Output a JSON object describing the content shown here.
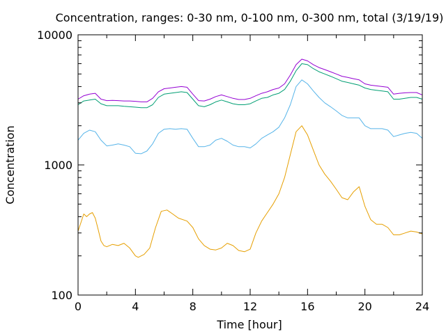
{
  "chart_data": {
    "type": "line",
    "title": "Concentration, ranges: 0-30 nm, 0-100 nm, 0-300 nm, total (3/19/19)",
    "xlabel": "Time [hour]",
    "ylabel": "Concentration",
    "xlim": [
      0,
      24
    ],
    "ylim": [
      100,
      10000
    ],
    "yscale": "log",
    "grid": false,
    "legend": "none",
    "x_ticks": [
      0,
      4,
      8,
      12,
      16,
      20,
      24
    ],
    "x_tick_labels": [
      "0",
      "4",
      "8",
      "12",
      "16",
      "20",
      "24"
    ],
    "y_ticks": [
      100,
      1000,
      10000
    ],
    "y_tick_labels": [
      "100",
      "1000",
      "10000"
    ],
    "series": [
      {
        "color": "#e69f00",
        "x": [
          0,
          0.2,
          0.4,
          0.6,
          0.8,
          1.0,
          1.2,
          1.4,
          1.6,
          1.8,
          2.0,
          2.4,
          2.8,
          3.2,
          3.6,
          4.0,
          4.2,
          4.6,
          5.0,
          5.4,
          5.8,
          6.2,
          6.6,
          7.0,
          7.6,
          8.0,
          8.4,
          8.8,
          9.2,
          9.6,
          10.0,
          10.4,
          10.8,
          11.2,
          11.6,
          12.0,
          12.4,
          12.8,
          13.2,
          13.6,
          14.0,
          14.4,
          14.8,
          15.2,
          15.6,
          16.0,
          16.4,
          16.8,
          17.2,
          17.6,
          18.0,
          18.4,
          18.8,
          19.2,
          19.6,
          20.0,
          20.4,
          20.8,
          21.2,
          21.6,
          22.0,
          22.4,
          22.8,
          23.2,
          23.6,
          24.0
        ],
        "values": [
          310,
          360,
          420,
          400,
          420,
          430,
          390,
          320,
          260,
          240,
          235,
          245,
          240,
          250,
          230,
          200,
          195,
          205,
          230,
          330,
          440,
          450,
          420,
          390,
          370,
          330,
          270,
          240,
          225,
          222,
          230,
          250,
          240,
          220,
          215,
          225,
          300,
          370,
          430,
          500,
          600,
          800,
          1200,
          1800,
          2000,
          1700,
          1300,
          1000,
          850,
          750,
          650,
          560,
          540,
          620,
          680,
          480,
          380,
          350,
          350,
          330,
          290,
          290,
          300,
          310,
          305,
          295
        ]
      },
      {
        "color": "#56b4e9",
        "x": [
          0,
          0.4,
          0.8,
          1.2,
          1.6,
          2.0,
          2.4,
          2.8,
          3.2,
          3.6,
          4.0,
          4.4,
          4.8,
          5.2,
          5.6,
          6.0,
          6.4,
          6.8,
          7.2,
          7.6,
          8.0,
          8.4,
          8.8,
          9.2,
          9.6,
          10.0,
          10.4,
          10.8,
          11.2,
          11.6,
          12.0,
          12.4,
          12.8,
          13.2,
          13.6,
          14.0,
          14.4,
          14.8,
          15.2,
          15.6,
          16.0,
          16.4,
          16.8,
          17.2,
          17.6,
          18.0,
          18.4,
          18.8,
          19.2,
          19.6,
          20.0,
          20.4,
          20.8,
          21.2,
          21.6,
          22.0,
          22.4,
          22.8,
          23.2,
          23.6,
          24.0
        ],
        "values": [
          1550,
          1750,
          1850,
          1800,
          1550,
          1400,
          1420,
          1450,
          1420,
          1380,
          1230,
          1220,
          1280,
          1450,
          1750,
          1880,
          1900,
          1880,
          1900,
          1880,
          1600,
          1380,
          1380,
          1420,
          1550,
          1600,
          1520,
          1420,
          1380,
          1380,
          1350,
          1450,
          1600,
          1700,
          1800,
          1950,
          2300,
          2900,
          4000,
          4500,
          4200,
          3700,
          3300,
          3000,
          2800,
          2600,
          2400,
          2300,
          2300,
          2300,
          2000,
          1900,
          1900,
          1900,
          1850,
          1650,
          1700,
          1750,
          1780,
          1750,
          1600
        ]
      },
      {
        "color": "#009e73",
        "x": [
          0,
          0.4,
          0.8,
          1.2,
          1.6,
          2.0,
          2.4,
          2.8,
          3.2,
          3.6,
          4.0,
          4.4,
          4.8,
          5.2,
          5.6,
          6.0,
          6.4,
          6.8,
          7.2,
          7.6,
          8.0,
          8.4,
          8.8,
          9.2,
          9.6,
          10.0,
          10.4,
          10.8,
          11.2,
          11.6,
          12.0,
          12.4,
          12.8,
          13.2,
          13.6,
          14.0,
          14.4,
          14.8,
          15.2,
          15.6,
          16.0,
          16.4,
          16.8,
          17.2,
          17.6,
          18.0,
          18.4,
          18.8,
          19.2,
          19.6,
          20.0,
          20.4,
          20.8,
          21.2,
          21.6,
          22.0,
          22.4,
          22.8,
          23.2,
          23.6,
          24.0
        ],
        "values": [
          2900,
          3100,
          3150,
          3200,
          2950,
          2850,
          2850,
          2850,
          2820,
          2800,
          2780,
          2750,
          2750,
          2900,
          3300,
          3500,
          3550,
          3600,
          3650,
          3600,
          3200,
          2850,
          2800,
          2900,
          3050,
          3150,
          3050,
          2950,
          2900,
          2900,
          2950,
          3100,
          3250,
          3300,
          3450,
          3550,
          3800,
          4400,
          5300,
          6000,
          5900,
          5500,
          5200,
          5000,
          4800,
          4600,
          4400,
          4300,
          4200,
          4100,
          3900,
          3800,
          3750,
          3700,
          3650,
          3200,
          3200,
          3250,
          3300,
          3300,
          3200
        ]
      },
      {
        "color": "#9400d3",
        "x": [
          0,
          0.4,
          0.8,
          1.2,
          1.6,
          2.0,
          2.4,
          2.8,
          3.2,
          3.6,
          4.0,
          4.4,
          4.8,
          5.2,
          5.6,
          6.0,
          6.4,
          6.8,
          7.2,
          7.6,
          8.0,
          8.4,
          8.8,
          9.2,
          9.6,
          10.0,
          10.4,
          10.8,
          11.2,
          11.6,
          12.0,
          12.4,
          12.8,
          13.2,
          13.6,
          14.0,
          14.4,
          14.8,
          15.2,
          15.6,
          16.0,
          16.4,
          16.8,
          17.2,
          17.6,
          18.0,
          18.4,
          18.8,
          19.2,
          19.6,
          20.0,
          20.4,
          20.8,
          21.2,
          21.6,
          22.0,
          22.4,
          22.8,
          23.2,
          23.6,
          24.0
        ],
        "values": [
          3200,
          3400,
          3500,
          3550,
          3200,
          3120,
          3130,
          3120,
          3100,
          3100,
          3080,
          3050,
          3050,
          3250,
          3650,
          3850,
          3900,
          3950,
          4000,
          3950,
          3500,
          3120,
          3100,
          3200,
          3350,
          3450,
          3350,
          3250,
          3180,
          3180,
          3250,
          3400,
          3550,
          3650,
          3800,
          3900,
          4200,
          4900,
          5900,
          6500,
          6300,
          5900,
          5600,
          5400,
          5200,
          5000,
          4800,
          4700,
          4600,
          4500,
          4200,
          4100,
          4050,
          4000,
          3950,
          3500,
          3550,
          3580,
          3600,
          3600,
          3450
        ]
      }
    ]
  }
}
